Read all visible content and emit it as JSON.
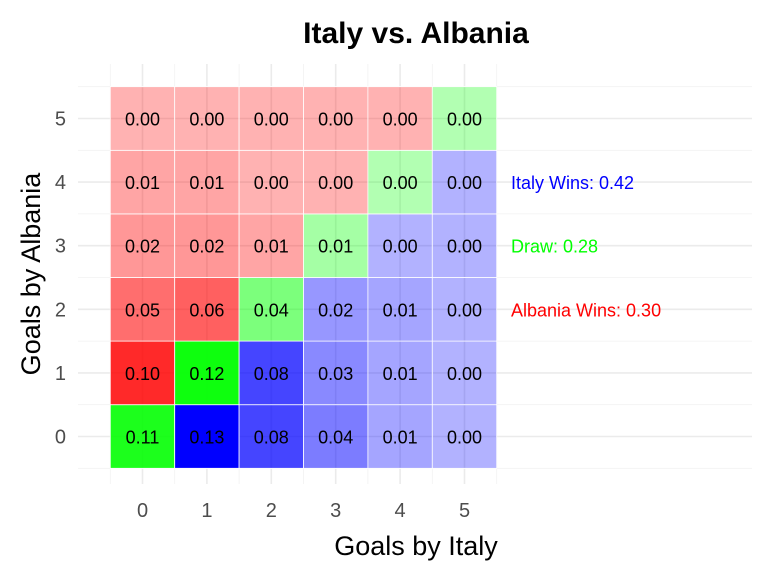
{
  "chart_data": {
    "type": "heatmap",
    "title": "Italy vs. Albania",
    "xlabel": "Goals by Italy",
    "ylabel": "Goals by Albania",
    "x": [
      0,
      1,
      2,
      3,
      4,
      5
    ],
    "y": [
      0,
      1,
      2,
      3,
      4,
      5
    ],
    "grid": true,
    "colors": {
      "italy_win": "#0000ff",
      "draw": "#00ff00",
      "albania_win": "#ff0000"
    },
    "values_by_albania_goals": [
      [
        "0.11",
        "0.13",
        "0.08",
        "0.04",
        "0.01",
        "0.00"
      ],
      [
        "0.10",
        "0.12",
        "0.08",
        "0.03",
        "0.01",
        "0.00"
      ],
      [
        "0.05",
        "0.06",
        "0.04",
        "0.02",
        "0.01",
        "0.00"
      ],
      [
        "0.02",
        "0.02",
        "0.01",
        "0.01",
        "0.00",
        "0.00"
      ],
      [
        "0.01",
        "0.01",
        "0.00",
        "0.00",
        "0.00",
        "0.00"
      ],
      [
        "0.00",
        "0.00",
        "0.00",
        "0.00",
        "0.00",
        "0.00"
      ]
    ],
    "annotations": [
      {
        "text": "Italy Wins: 0.42",
        "color": "#0000ff"
      },
      {
        "text": "Draw: 0.28",
        "color": "#00ff00"
      },
      {
        "text": "Albania Wins: 0.30",
        "color": "#ff0000"
      }
    ]
  }
}
